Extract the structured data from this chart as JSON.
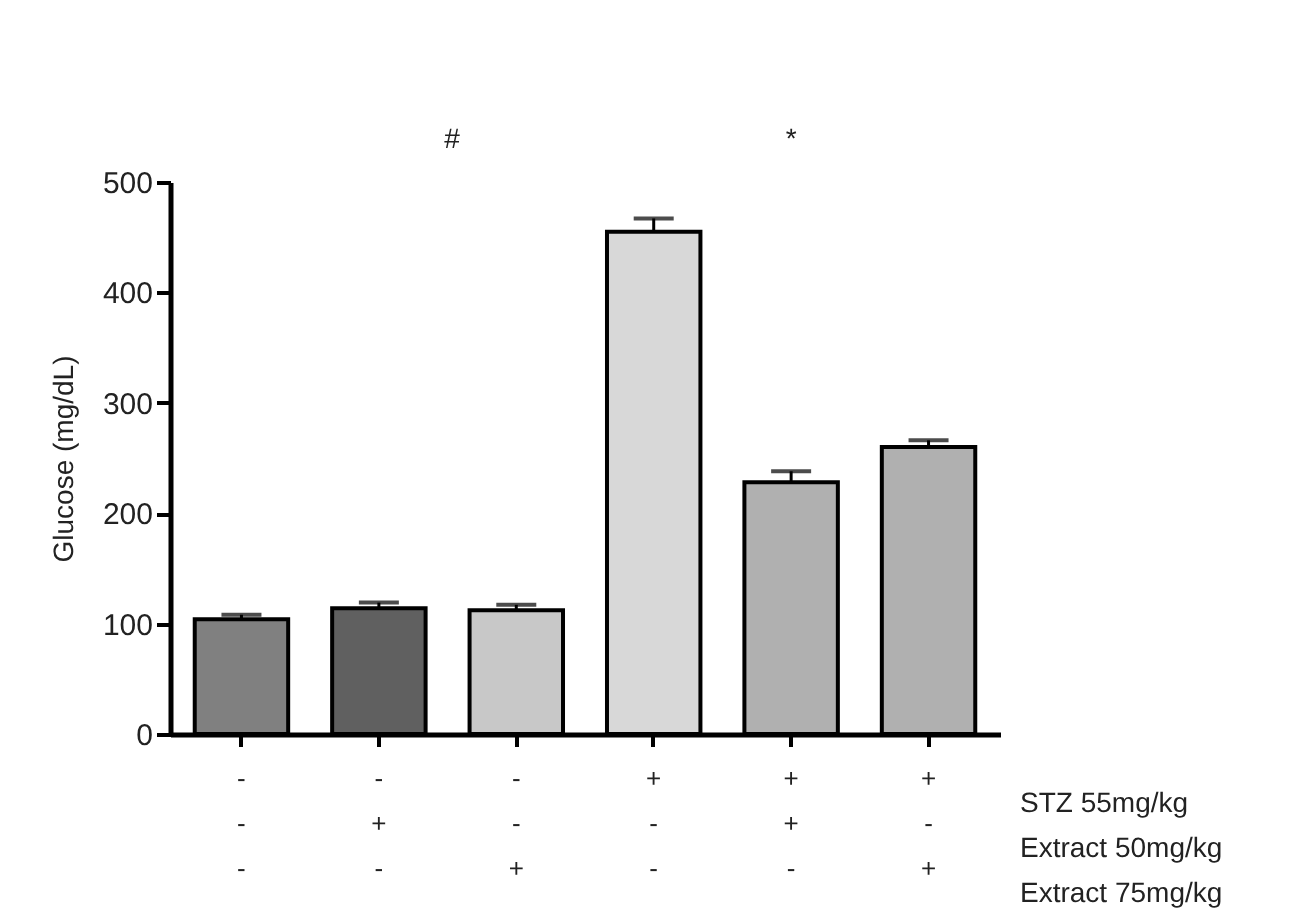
{
  "chart_data": {
    "type": "bar",
    "ylabel": "Glucose (mg/dL)",
    "categories": [
      "-\n-\n-",
      "-\n+\n-",
      "-\n-\n+",
      "+\n-\n-",
      "+\n+\n-",
      "+\n-\n+"
    ],
    "values": [
      104,
      114,
      112,
      455,
      228,
      260
    ],
    "errors": [
      4,
      5,
      5,
      12,
      10,
      6
    ],
    "colors": [
      "#808080",
      "#606060",
      "#c8c8c8",
      "#d8d8d8",
      "#b0b0b0",
      "#b0b0b0"
    ],
    "ylim": [
      0,
      500
    ],
    "yticks": [
      0,
      100,
      200,
      300,
      400,
      500
    ],
    "grid": false,
    "annotations": [
      "STZ 55mg/kg",
      "Extract 50mg/kg",
      "Extract 75mg/kg",
      "#",
      "*"
    ]
  }
}
